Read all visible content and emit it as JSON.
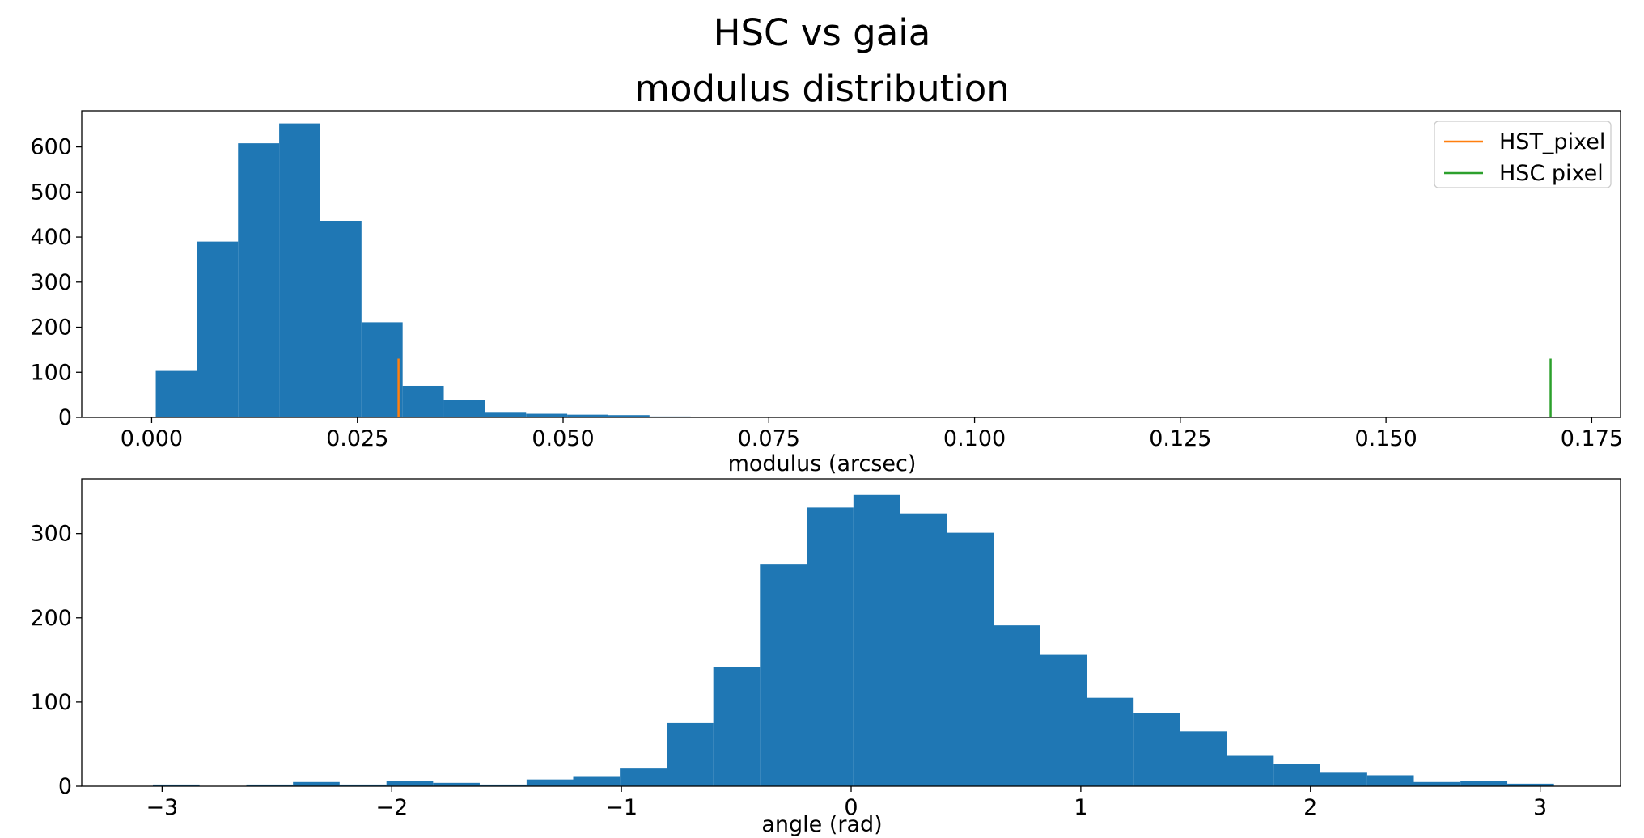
{
  "figure": {
    "suptitle": "HSC vs gaia"
  },
  "chart_data": [
    {
      "type": "bar",
      "subtype": "histogram",
      "title": "modulus distribution",
      "xlabel": "modulus (arcsec)",
      "ylabel": "",
      "xlim": [
        -0.0085,
        0.1785
      ],
      "ylim": [
        0,
        680
      ],
      "xticks": [
        0.0,
        0.025,
        0.05,
        0.075,
        0.1,
        0.125,
        0.15,
        0.175
      ],
      "xtick_labels": [
        "0.000",
        "0.025",
        "0.050",
        "0.075",
        "0.100",
        "0.125",
        "0.150",
        "0.175"
      ],
      "yticks": [
        0,
        100,
        200,
        300,
        400,
        500,
        600
      ],
      "ytick_labels": [
        "0",
        "100",
        "200",
        "300",
        "400",
        "500",
        "600"
      ],
      "bar_color": "#1f77b4",
      "bin_edges": [
        0.0005,
        0.0055,
        0.0105,
        0.0155,
        0.0205,
        0.0255,
        0.0305,
        0.0355,
        0.0405,
        0.0455,
        0.0505,
        0.0555,
        0.0605,
        0.0655
      ],
      "counts": [
        103,
        390,
        608,
        652,
        436,
        211,
        70,
        38,
        12,
        8,
        6,
        5,
        2
      ],
      "vlines": [
        {
          "name": "HST_pixel",
          "x": 0.03,
          "ymin": 0,
          "ymax": 130,
          "color": "#ff7f0e"
        },
        {
          "name": "HSC pixel",
          "x": 0.17,
          "ymin": 0,
          "ymax": 130,
          "color": "#2ca02c"
        }
      ],
      "legend": {
        "position": "upper right",
        "entries": [
          "HST_pixel",
          "HSC pixel"
        ]
      },
      "grid": false
    },
    {
      "type": "bar",
      "subtype": "histogram",
      "title": "",
      "xlabel": "angle (rad)",
      "ylabel": "",
      "xlim": [
        -3.35,
        3.35
      ],
      "ylim": [
        0,
        365
      ],
      "xticks": [
        -3,
        -2,
        -1,
        0,
        1,
        2,
        3
      ],
      "xtick_labels": [
        "−3",
        "−2",
        "−1",
        "0",
        "1",
        "2",
        "3"
      ],
      "yticks": [
        0,
        100,
        200,
        300
      ],
      "ytick_labels": [
        "0",
        "100",
        "200",
        "300"
      ],
      "bar_color": "#1f77b4",
      "bin_edges": [
        -3.04,
        -2.837,
        -2.633,
        -2.43,
        -2.227,
        -2.023,
        -1.82,
        -1.617,
        -1.413,
        -1.21,
        -1.007,
        -0.803,
        -0.6,
        -0.397,
        -0.193,
        0.01,
        0.213,
        0.417,
        0.62,
        0.823,
        1.027,
        1.23,
        1.433,
        1.637,
        1.84,
        2.043,
        2.247,
        2.45,
        2.653,
        2.857,
        3.06
      ],
      "counts": [
        2,
        0,
        2,
        5,
        2,
        6,
        4,
        2,
        8,
        12,
        21,
        75,
        142,
        264,
        331,
        346,
        324,
        301,
        191,
        156,
        105,
        87,
        65,
        36,
        26,
        16,
        13,
        5,
        6,
        3
      ],
      "grid": false
    }
  ]
}
